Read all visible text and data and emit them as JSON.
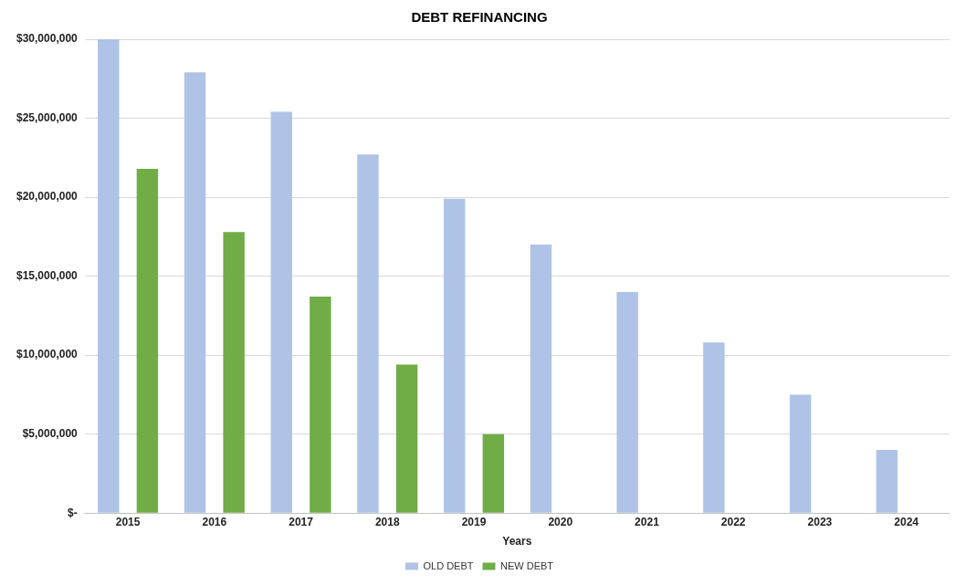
{
  "chart_data": {
    "type": "bar",
    "title": "DEBT REFINANCING",
    "xlabel": "Years",
    "categories": [
      "2015",
      "2016",
      "2017",
      "2018",
      "2019",
      "2020",
      "2021",
      "2022",
      "2023",
      "2024"
    ],
    "series": [
      {
        "name": "OLD DEBT",
        "color": "#aec3e6",
        "values": [
          30000000,
          27900000,
          25400000,
          22700000,
          19900000,
          17000000,
          14000000,
          10800000,
          7500000,
          4000000
        ]
      },
      {
        "name": "NEW DEBT",
        "color": "#70ad47",
        "values": [
          21800000,
          17800000,
          13700000,
          9400000,
          5000000,
          null,
          null,
          null,
          null,
          null
        ]
      }
    ],
    "ylim": [
      0,
      30000000
    ],
    "yticks": [
      {
        "value": 0,
        "label": "$-"
      },
      {
        "value": 5000000,
        "label": "$5,000,000"
      },
      {
        "value": 10000000,
        "label": "$10,000,000"
      },
      {
        "value": 15000000,
        "label": "$15,000,000"
      },
      {
        "value": 20000000,
        "label": "$20,000,000"
      },
      {
        "value": 25000000,
        "label": "$25,000,000"
      },
      {
        "value": 30000000,
        "label": "$30,000,000"
      }
    ],
    "grid": "y",
    "legend": "bottom"
  }
}
